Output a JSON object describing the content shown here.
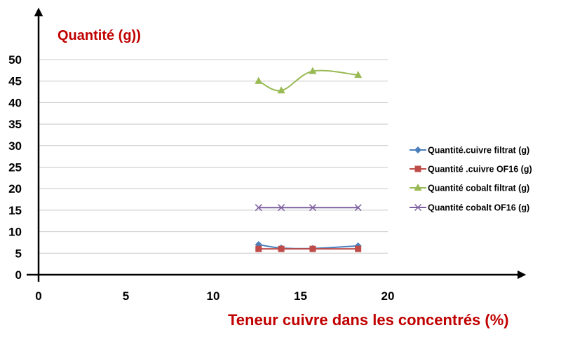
{
  "chart_data": {
    "type": "line",
    "title": "",
    "xlabel": "Teneur cuivre dans les concentrés (%)",
    "ylabel": "Quantité (g))",
    "xlim": [
      0,
      20
    ],
    "ylim": [
      0,
      50
    ],
    "x_ticks": [
      0,
      5,
      10,
      15,
      20
    ],
    "y_ticks": [
      0,
      5,
      10,
      15,
      20,
      25,
      30,
      35,
      40,
      45,
      50
    ],
    "grid": "horizontal",
    "legend_position": "right",
    "series": [
      {
        "name": "Quantité.cuivre filtrat (g)",
        "color": "#4a7ebb",
        "marker": "diamond",
        "x": [
          12.6,
          13.9,
          15.7,
          18.3
        ],
        "y": [
          7.0,
          6.2,
          6.1,
          6.7
        ]
      },
      {
        "name": "Quantité .cuivre OF16 (g)",
        "color": "#be4b48",
        "marker": "square",
        "x": [
          12.6,
          13.9,
          15.7,
          18.3
        ],
        "y": [
          6.0,
          6.0,
          6.0,
          6.0
        ]
      },
      {
        "name": "Quantité  cobalt filtrat (g)",
        "color": "#98b954",
        "marker": "triangle",
        "x": [
          12.6,
          13.9,
          15.7,
          18.3
        ],
        "y": [
          45.0,
          42.8,
          47.3,
          46.4
        ]
      },
      {
        "name": "Quantité   cobalt OF16 (g)",
        "color": "#7d60a0",
        "marker": "x",
        "x": [
          12.6,
          13.9,
          15.7,
          18.3
        ],
        "y": [
          15.6,
          15.6,
          15.6,
          15.6
        ]
      }
    ]
  }
}
